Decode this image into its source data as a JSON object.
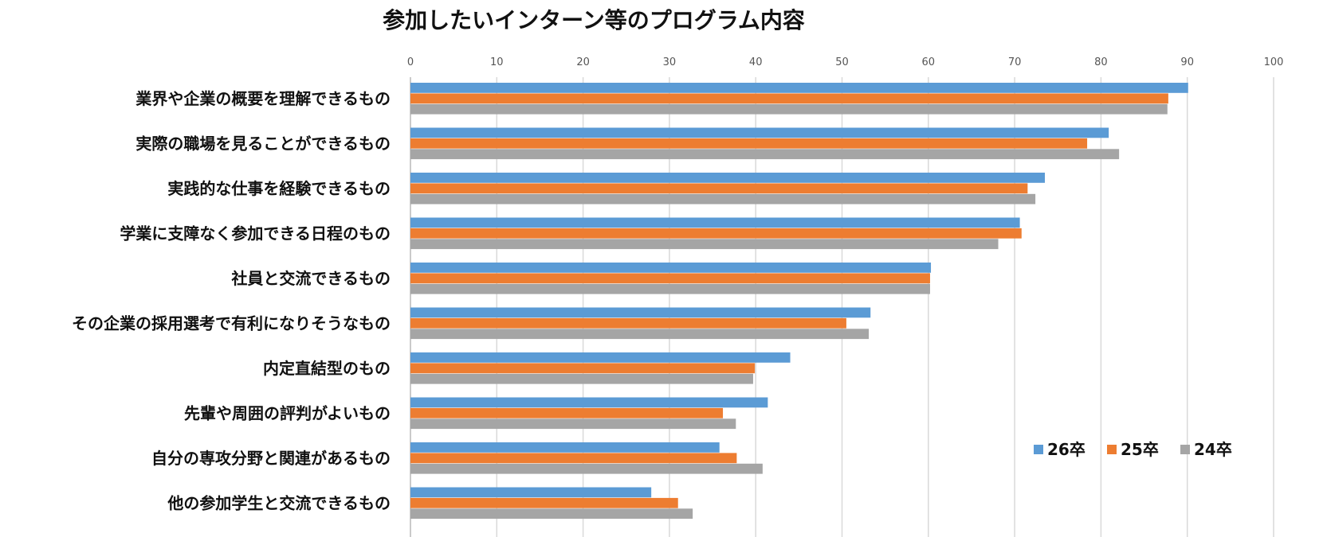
{
  "chart_data": {
    "type": "bar",
    "orientation": "horizontal",
    "title": "参加したいインターン等のプログラム内容",
    "xlim": [
      0,
      100
    ],
    "xticks": [
      0,
      10,
      20,
      30,
      40,
      50,
      60,
      70,
      80,
      90,
      100
    ],
    "grid": true,
    "legend_position": "bottom-right",
    "categories": [
      "業界や企業の概要を理解できるもの",
      "実際の職場を見ることができるもの",
      "実践的な仕事を経験できるもの",
      "学業に支障なく参加できる日程のもの",
      "社員と交流できるもの",
      "その企業の採用選考で有利になりそうなもの",
      "内定直結型のもの",
      "先輩や周囲の評判がよいもの",
      "自分の専攻分野と関連があるもの",
      "他の参加学生と交流できるもの"
    ],
    "series": [
      {
        "name": "26卒",
        "color": "#5B9BD5",
        "values": [
          90.1,
          80.9,
          73.5,
          70.6,
          60.3,
          53.3,
          44.0,
          41.4,
          35.8,
          27.9
        ]
      },
      {
        "name": "25卒",
        "color": "#ED7D31",
        "values": [
          87.8,
          78.4,
          71.5,
          70.8,
          60.2,
          50.5,
          39.9,
          36.2,
          37.8,
          31.0
        ]
      },
      {
        "name": "24卒",
        "color": "#A5A5A5",
        "values": [
          87.7,
          82.1,
          72.4,
          68.1,
          60.2,
          53.1,
          39.7,
          37.7,
          40.8,
          32.7
        ]
      }
    ]
  }
}
